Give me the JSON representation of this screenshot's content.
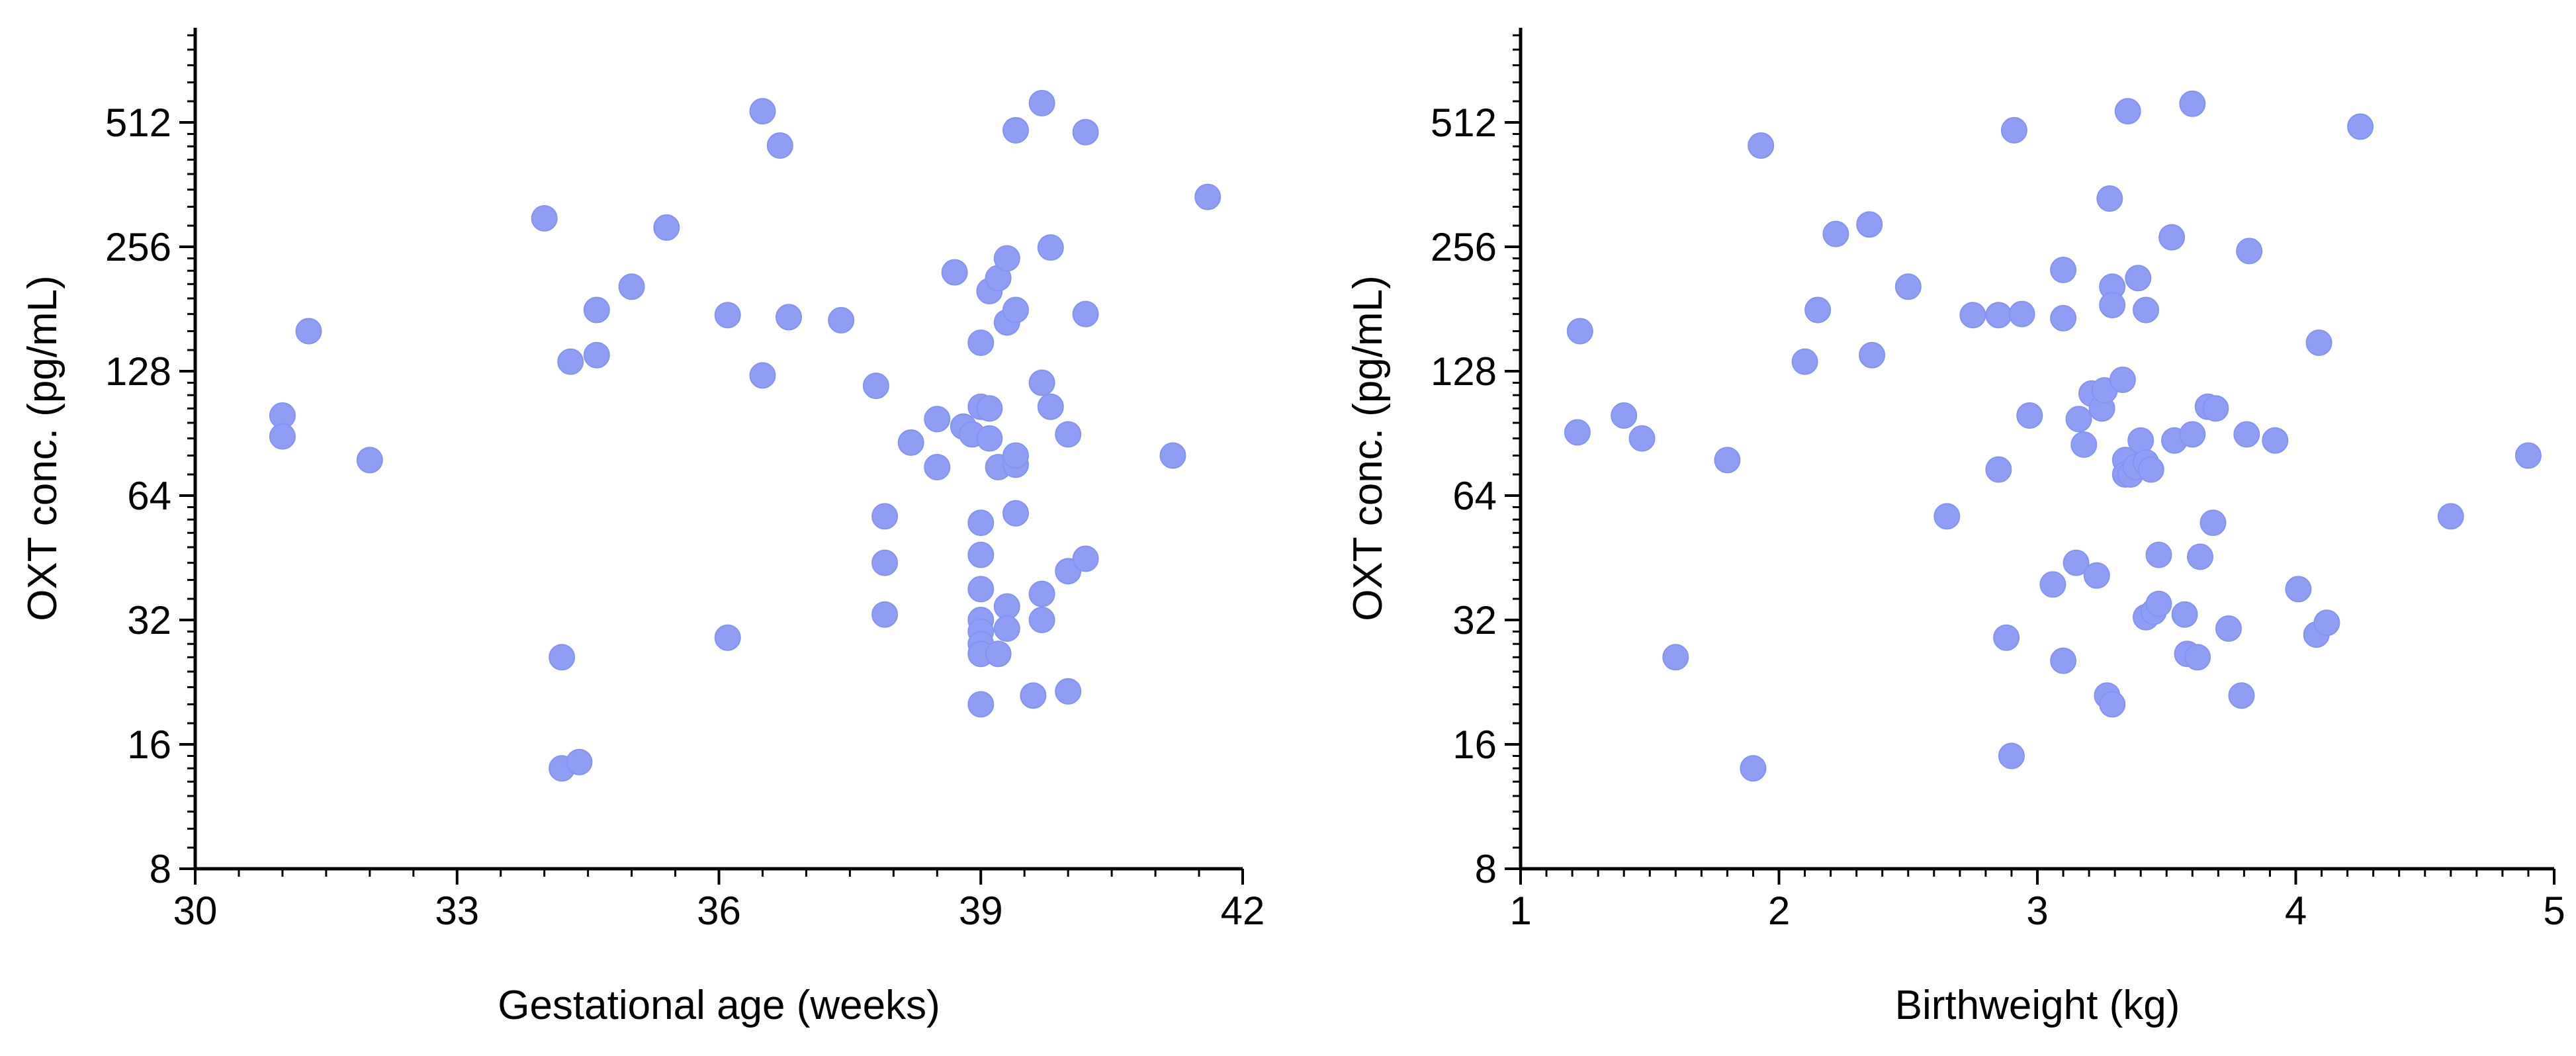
{
  "chart_data": [
    {
      "type": "scatter",
      "title": "",
      "xlabel": "Gestational age (weeks)",
      "ylabel": "OXT conc. (pg/mL)",
      "y_scale": "log2",
      "xlim": [
        30,
        42
      ],
      "ylim": [
        8,
        1024
      ],
      "x_ticks": [
        30,
        33,
        36,
        39,
        42
      ],
      "y_ticks": [
        8,
        16,
        32,
        64,
        128,
        256,
        512
      ],
      "x_tick_labels": [
        "30",
        "33",
        "36",
        "39",
        "42"
      ],
      "y_tick_labels": [
        "8",
        "16",
        "32",
        "64",
        "128",
        "256",
        "512"
      ],
      "color": "#8f9ef4",
      "points": [
        [
          31.0,
          100
        ],
        [
          31.0,
          89
        ],
        [
          31.3,
          160
        ],
        [
          32.0,
          78
        ],
        [
          34.0,
          300
        ],
        [
          34.2,
          26
        ],
        [
          34.2,
          14
        ],
        [
          34.3,
          135
        ],
        [
          34.4,
          14.5
        ],
        [
          34.6,
          180
        ],
        [
          34.6,
          140
        ],
        [
          35.0,
          205
        ],
        [
          35.4,
          285
        ],
        [
          36.1,
          29
        ],
        [
          36.1,
          175
        ],
        [
          36.5,
          125
        ],
        [
          36.5,
          545
        ],
        [
          36.7,
          450
        ],
        [
          36.8,
          173
        ],
        [
          37.4,
          170
        ],
        [
          37.8,
          118
        ],
        [
          37.9,
          57
        ],
        [
          37.9,
          44
        ],
        [
          37.9,
          33
        ],
        [
          38.2,
          86
        ],
        [
          38.5,
          98
        ],
        [
          38.5,
          75
        ],
        [
          38.7,
          222
        ],
        [
          38.8,
          94
        ],
        [
          38.9,
          90
        ],
        [
          39.0,
          150
        ],
        [
          39.0,
          105
        ],
        [
          39.0,
          55
        ],
        [
          39.0,
          46
        ],
        [
          39.0,
          38
        ],
        [
          39.0,
          32
        ],
        [
          39.0,
          30
        ],
        [
          39.0,
          28
        ],
        [
          39.0,
          26.5
        ],
        [
          39.0,
          20
        ],
        [
          39.1,
          200
        ],
        [
          39.1,
          88
        ],
        [
          39.1,
          104
        ],
        [
          39.2,
          215
        ],
        [
          39.2,
          75
        ],
        [
          39.2,
          26.5
        ],
        [
          39.3,
          240
        ],
        [
          39.3,
          168
        ],
        [
          39.3,
          34.5
        ],
        [
          39.3,
          30.5
        ],
        [
          39.4,
          180
        ],
        [
          39.4,
          76
        ],
        [
          39.4,
          80
        ],
        [
          39.4,
          490
        ],
        [
          39.4,
          58
        ],
        [
          39.6,
          21
        ],
        [
          39.7,
          570
        ],
        [
          39.7,
          120
        ],
        [
          39.7,
          37
        ],
        [
          39.7,
          32
        ],
        [
          39.8,
          105
        ],
        [
          39.8,
          255
        ],
        [
          40.0,
          90
        ],
        [
          40.0,
          42
        ],
        [
          40.0,
          21.5
        ],
        [
          40.2,
          176
        ],
        [
          40.2,
          485
        ],
        [
          40.2,
          45
        ],
        [
          41.2,
          80
        ],
        [
          41.6,
          338
        ]
      ]
    },
    {
      "type": "scatter",
      "title": "",
      "xlabel": "Birthweight (kg)",
      "ylabel": "OXT conc. (pg/mL)",
      "y_scale": "log2",
      "xlim": [
        1,
        5
      ],
      "ylim": [
        8,
        1024
      ],
      "x_ticks": [
        1,
        2,
        3,
        4,
        5
      ],
      "y_ticks": [
        8,
        16,
        32,
        64,
        128,
        256,
        512
      ],
      "x_tick_labels": [
        "1",
        "2",
        "3",
        "4",
        "5"
      ],
      "y_tick_labels": [
        "8",
        "16",
        "32",
        "64",
        "128",
        "256",
        "512"
      ],
      "color": "#8f9ef4",
      "points": [
        [
          1.22,
          91
        ],
        [
          1.23,
          160
        ],
        [
          1.4,
          100
        ],
        [
          1.47,
          88
        ],
        [
          1.6,
          26
        ],
        [
          1.8,
          78
        ],
        [
          1.9,
          14
        ],
        [
          1.93,
          450
        ],
        [
          2.1,
          135
        ],
        [
          2.15,
          180
        ],
        [
          2.22,
          275
        ],
        [
          2.35,
          290
        ],
        [
          2.36,
          140
        ],
        [
          2.5,
          205
        ],
        [
          2.65,
          57
        ],
        [
          2.75,
          175
        ],
        [
          2.85,
          175
        ],
        [
          2.85,
          74
        ],
        [
          2.88,
          29
        ],
        [
          2.9,
          15
        ],
        [
          2.91,
          490
        ],
        [
          2.94,
          176
        ],
        [
          2.97,
          100
        ],
        [
          3.06,
          39
        ],
        [
          3.1,
          225
        ],
        [
          3.1,
          172
        ],
        [
          3.1,
          25.5
        ],
        [
          3.15,
          44
        ],
        [
          3.16,
          98
        ],
        [
          3.18,
          85
        ],
        [
          3.21,
          113
        ],
        [
          3.23,
          41
        ],
        [
          3.25,
          104
        ],
        [
          3.26,
          115
        ],
        [
          3.27,
          21
        ],
        [
          3.29,
          20
        ],
        [
          3.28,
          335
        ],
        [
          3.29,
          205
        ],
        [
          3.29,
          185
        ],
        [
          3.33,
          122
        ],
        [
          3.34,
          78
        ],
        [
          3.34,
          72
        ],
        [
          3.35,
          545
        ],
        [
          3.36,
          72
        ],
        [
          3.38,
          75
        ],
        [
          3.39,
          215
        ],
        [
          3.4,
          87
        ],
        [
          3.42,
          180
        ],
        [
          3.42,
          32.5
        ],
        [
          3.42,
          77
        ],
        [
          3.44,
          74
        ],
        [
          3.45,
          33.5
        ],
        [
          3.47,
          35
        ],
        [
          3.47,
          46
        ],
        [
          3.52,
          270
        ],
        [
          3.53,
          87
        ],
        [
          3.57,
          33
        ],
        [
          3.58,
          26.5
        ],
        [
          3.6,
          568
        ],
        [
          3.6,
          90
        ],
        [
          3.62,
          26
        ],
        [
          3.63,
          45.5
        ],
        [
          3.66,
          105
        ],
        [
          3.68,
          55
        ],
        [
          3.69,
          104
        ],
        [
          3.74,
          30.5
        ],
        [
          3.79,
          21
        ],
        [
          3.81,
          90
        ],
        [
          3.82,
          250
        ],
        [
          3.92,
          87
        ],
        [
          4.01,
          38
        ],
        [
          4.08,
          29.5
        ],
        [
          4.09,
          150
        ],
        [
          4.12,
          31.5
        ],
        [
          4.25,
          500
        ],
        [
          4.6,
          57
        ],
        [
          4.9,
          80
        ]
      ]
    }
  ]
}
